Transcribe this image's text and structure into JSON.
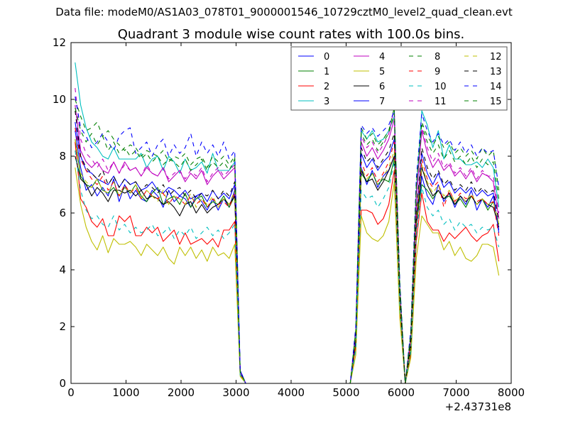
{
  "figure": {
    "suptitle": "Data file: modeM0/AS1A03_078T01_9000001546_10729cztM0_level2_quad_clean.evt"
  },
  "chart_data": {
    "type": "line",
    "title": "Quadrant 3 module wise count rates with 100.0s bins.",
    "xlabel": "",
    "ylabel": "",
    "x_offset_label": "+2.43731e8",
    "xlim": [
      0,
      8000
    ],
    "ylim": [
      0,
      12
    ],
    "xticks": [
      0,
      1000,
      2000,
      3000,
      4000,
      5000,
      6000,
      7000,
      8000
    ],
    "yticks": [
      0,
      2,
      4,
      6,
      8,
      10,
      12
    ],
    "grid": false,
    "legend_position": "top-right",
    "legend_columns": 4,
    "x": [
      75,
      175,
      275,
      375,
      475,
      575,
      675,
      775,
      875,
      975,
      1075,
      1175,
      1275,
      1375,
      1475,
      1575,
      1675,
      1775,
      1875,
      1975,
      2075,
      2175,
      2275,
      2375,
      2475,
      2575,
      2675,
      2775,
      2875,
      2975,
      3075,
      3175,
      5075,
      5175,
      5275,
      5375,
      5475,
      5575,
      5675,
      5775,
      5875,
      5975,
      6075,
      6175,
      6275,
      6375,
      6475,
      6575,
      6675,
      6775,
      6875,
      6975,
      7075,
      7175,
      7275,
      7375,
      7475,
      7575,
      7675,
      7775
    ],
    "series": [
      {
        "name": "0",
        "color": "#0000ff",
        "dash": "solid",
        "values": [
          8.9,
          7.6,
          6.8,
          7.0,
          6.6,
          6.9,
          6.6,
          7.2,
          6.4,
          7.0,
          6.5,
          6.8,
          6.5,
          6.4,
          6.8,
          6.6,
          6.2,
          6.8,
          6.4,
          6.6,
          6.5,
          6.2,
          6.6,
          6.4,
          6.1,
          6.5,
          6.1,
          6.5,
          6.2,
          6.8,
          0.45,
          0.0,
          0.0,
          1.5,
          7.6,
          7.0,
          7.5,
          6.9,
          7.3,
          7.5,
          8.0,
          3.0,
          0.0,
          1.3,
          5.5,
          7.3,
          6.6,
          6.3,
          7.0,
          6.4,
          6.7,
          6.2,
          6.6,
          6.3,
          6.8,
          6.1,
          6.5,
          6.2,
          6.6,
          5.4
        ]
      },
      {
        "name": "1",
        "color": "#008000",
        "dash": "solid",
        "values": [
          8.6,
          7.3,
          7.0,
          6.9,
          7.2,
          6.8,
          6.7,
          6.9,
          6.6,
          6.9,
          6.7,
          7.0,
          6.6,
          6.4,
          6.7,
          6.9,
          6.3,
          6.5,
          6.6,
          6.3,
          6.7,
          6.2,
          6.5,
          6.6,
          6.2,
          6.4,
          6.3,
          6.6,
          6.2,
          6.6,
          0.4,
          0.0,
          0.0,
          1.6,
          7.4,
          7.1,
          7.4,
          7.0,
          7.2,
          7.1,
          7.9,
          2.9,
          0.0,
          1.4,
          5.6,
          7.0,
          6.8,
          6.5,
          6.8,
          6.5,
          6.6,
          6.3,
          6.5,
          6.2,
          6.6,
          6.3,
          6.5,
          6.1,
          6.4,
          5.6
        ]
      },
      {
        "name": "2",
        "color": "#ff0000",
        "dash": "solid",
        "values": [
          8.5,
          6.5,
          6.2,
          5.7,
          5.5,
          5.8,
          5.2,
          5.2,
          5.9,
          5.7,
          5.9,
          5.2,
          5.2,
          5.5,
          5.3,
          5.5,
          5.0,
          5.2,
          5.4,
          4.9,
          5.3,
          4.9,
          5.0,
          5.1,
          4.9,
          5.1,
          4.8,
          5.4,
          5.4,
          5.7,
          0.3,
          0.0,
          0.0,
          1.3,
          6.1,
          6.1,
          6.0,
          5.6,
          5.8,
          6.3,
          7.5,
          2.6,
          0.0,
          1.0,
          5.0,
          6.7,
          5.7,
          5.4,
          5.4,
          5.0,
          5.3,
          5.1,
          5.3,
          5.5,
          5.2,
          5.0,
          5.2,
          5.3,
          5.6,
          4.3
        ]
      },
      {
        "name": "3",
        "color": "#00bfbf",
        "dash": "solid",
        "values": [
          11.3,
          9.8,
          9.0,
          8.5,
          8.3,
          8.0,
          7.9,
          8.3,
          7.9,
          7.9,
          7.9,
          7.9,
          8.1,
          7.6,
          7.9,
          8.0,
          7.5,
          8.0,
          7.8,
          7.4,
          7.9,
          7.5,
          7.6,
          7.8,
          7.4,
          8.1,
          7.5,
          7.5,
          7.5,
          7.8,
          0.45,
          0.0,
          0.0,
          1.8,
          8.9,
          8.6,
          8.9,
          8.5,
          8.6,
          8.9,
          9.4,
          3.4,
          0.0,
          1.7,
          6.8,
          9.6,
          9.1,
          8.3,
          8.9,
          7.9,
          8.4,
          7.9,
          7.9,
          7.7,
          7.7,
          7.8,
          7.6,
          7.9,
          7.6,
          6.2
        ]
      },
      {
        "name": "4",
        "color": "#bf00bf",
        "dash": "solid",
        "values": [
          9.8,
          8.2,
          7.8,
          7.6,
          7.8,
          7.5,
          7.4,
          7.8,
          7.4,
          7.8,
          7.5,
          7.6,
          7.3,
          7.6,
          7.4,
          7.3,
          7.6,
          7.1,
          7.3,
          7.5,
          7.1,
          7.4,
          7.2,
          7.5,
          7.0,
          7.3,
          7.5,
          7.2,
          7.4,
          7.6,
          0.4,
          0.0,
          0.0,
          1.7,
          8.5,
          8.0,
          8.3,
          7.9,
          8.2,
          8.6,
          9.3,
          3.2,
          0.0,
          1.6,
          6.5,
          8.9,
          8.1,
          7.6,
          7.9,
          7.5,
          7.7,
          7.3,
          7.5,
          7.2,
          7.5,
          7.1,
          7.4,
          7.3,
          7.1,
          5.8
        ]
      },
      {
        "name": "5",
        "color": "#bfbf00",
        "dash": "solid",
        "values": [
          7.6,
          6.3,
          5.5,
          5.0,
          4.7,
          5.2,
          4.6,
          5.1,
          4.9,
          4.9,
          5.0,
          4.8,
          4.5,
          4.9,
          4.7,
          4.5,
          4.8,
          4.4,
          4.2,
          4.8,
          4.5,
          4.8,
          4.4,
          4.7,
          4.3,
          4.8,
          4.5,
          4.6,
          4.4,
          4.9,
          0.25,
          0.0,
          0.0,
          1.0,
          5.9,
          5.3,
          5.1,
          5.0,
          5.2,
          5.7,
          7.1,
          2.3,
          0.0,
          0.9,
          4.4,
          5.9,
          5.6,
          5.3,
          5.3,
          4.7,
          5.0,
          4.5,
          4.8,
          4.4,
          4.3,
          4.5,
          4.9,
          4.9,
          4.8,
          3.8
        ]
      },
      {
        "name": "6",
        "color": "#000000",
        "dash": "solid",
        "values": [
          8.0,
          7.2,
          7.0,
          6.6,
          6.9,
          6.7,
          6.4,
          6.8,
          6.8,
          6.7,
          6.8,
          6.6,
          6.8,
          6.5,
          6.6,
          6.5,
          6.3,
          6.4,
          6.2,
          5.9,
          6.3,
          6.4,
          6.0,
          6.3,
          6.0,
          6.2,
          6.3,
          6.5,
          6.3,
          6.6,
          0.4,
          0.0,
          0.0,
          1.5,
          7.5,
          7.1,
          7.2,
          6.8,
          7.1,
          7.5,
          8.0,
          2.9,
          0.0,
          1.2,
          5.5,
          7.6,
          7.0,
          6.6,
          6.8,
          6.5,
          6.7,
          6.3,
          6.6,
          6.4,
          6.6,
          6.3,
          6.5,
          6.3,
          6.2,
          5.5
        ]
      },
      {
        "name": "7",
        "color": "#0000ff",
        "dash": "solid",
        "values": [
          9.2,
          8.0,
          7.5,
          7.4,
          7.2,
          7.1,
          7.0,
          7.3,
          6.9,
          7.2,
          7.0,
          7.1,
          6.8,
          6.9,
          7.1,
          6.8,
          6.7,
          6.9,
          6.8,
          6.6,
          6.8,
          6.5,
          6.6,
          6.7,
          6.4,
          6.8,
          6.5,
          6.7,
          6.5,
          7.0,
          0.45,
          0.0,
          0.0,
          1.7,
          8.1,
          7.6,
          7.9,
          7.5,
          7.8,
          8.0,
          8.6,
          3.1,
          0.0,
          1.5,
          5.9,
          8.1,
          7.4,
          7.0,
          7.4,
          6.9,
          7.1,
          6.7,
          6.9,
          6.7,
          6.9,
          6.6,
          6.8,
          6.6,
          6.7,
          5.3
        ]
      },
      {
        "name": "8",
        "color": "#008000",
        "dash": "dashed",
        "values": [
          10.0,
          9.4,
          8.9,
          9.0,
          9.2,
          8.7,
          8.9,
          8.6,
          8.4,
          8.2,
          8.4,
          8.3,
          8.0,
          8.2,
          8.1,
          8.0,
          8.2,
          7.8,
          8.0,
          7.9,
          8.1,
          7.7,
          7.9,
          8.0,
          7.6,
          8.0,
          7.8,
          8.0,
          7.7,
          8.0,
          0.4,
          0.0,
          0.0,
          1.9,
          9.0,
          8.6,
          8.8,
          8.4,
          8.6,
          8.9,
          9.7,
          3.5,
          0.0,
          1.8,
          7.0,
          9.2,
          8.7,
          8.4,
          8.7,
          8.3,
          8.5,
          8.1,
          8.3,
          8.0,
          8.2,
          7.9,
          8.3,
          8.0,
          8.2,
          6.8
        ]
      },
      {
        "name": "9",
        "color": "#ff0000",
        "dash": "dashed",
        "values": [
          9.0,
          7.9,
          7.5,
          7.2,
          7.0,
          7.3,
          6.8,
          7.1,
          6.6,
          7.0,
          6.7,
          6.9,
          6.5,
          6.8,
          6.6,
          6.5,
          6.7,
          6.3,
          6.6,
          6.5,
          6.3,
          6.6,
          6.3,
          6.5,
          6.2,
          6.5,
          6.3,
          6.4,
          6.2,
          6.7,
          0.35,
          0.0,
          0.0,
          1.6,
          7.8,
          7.3,
          7.6,
          7.1,
          7.4,
          7.8,
          8.5,
          3.0,
          0.0,
          1.4,
          5.7,
          7.9,
          7.2,
          6.9,
          7.1,
          6.2,
          6.8,
          6.4,
          6.7,
          6.5,
          6.6,
          6.4,
          6.5,
          6.3,
          6.4,
          5.2
        ]
      },
      {
        "name": "10",
        "color": "#00bfbf",
        "dash": "dashed",
        "values": [
          8.2,
          6.8,
          6.1,
          5.8,
          5.9,
          5.6,
          5.5,
          5.9,
          5.4,
          5.6,
          5.3,
          5.5,
          5.3,
          5.4,
          5.6,
          5.2,
          5.3,
          5.5,
          5.1,
          5.4,
          5.2,
          5.5,
          5.1,
          5.3,
          5.5,
          5.2,
          5.4,
          5.1,
          5.3,
          5.6,
          0.3,
          0.0,
          0.0,
          1.2,
          6.8,
          6.5,
          6.6,
          6.2,
          6.5,
          6.9,
          7.8,
          2.7,
          0.0,
          1.1,
          5.2,
          6.9,
          6.2,
          5.9,
          6.1,
          5.6,
          5.8,
          5.4,
          5.7,
          5.5,
          5.6,
          5.3,
          5.5,
          5.4,
          5.5,
          4.8
        ]
      },
      {
        "name": "11",
        "color": "#bf00bf",
        "dash": "dashed",
        "values": [
          10.4,
          8.6,
          8.1,
          7.9,
          7.6,
          7.9,
          7.5,
          7.8,
          7.4,
          7.7,
          7.5,
          7.6,
          7.3,
          7.7,
          7.4,
          7.3,
          7.6,
          7.2,
          7.4,
          7.5,
          7.2,
          7.5,
          7.3,
          7.6,
          7.1,
          7.4,
          7.6,
          7.3,
          7.5,
          7.7,
          0.4,
          0.0,
          0.0,
          1.8,
          8.7,
          8.3,
          8.5,
          8.1,
          8.4,
          8.8,
          9.7,
          3.3,
          0.0,
          1.6,
          6.6,
          9.0,
          8.3,
          7.8,
          8.1,
          7.6,
          7.8,
          7.4,
          7.6,
          7.3,
          7.6,
          7.2,
          7.5,
          7.3,
          7.3,
          6.0
        ]
      },
      {
        "name": "12",
        "color": "#bfbf00",
        "dash": "dashed",
        "values": [
          8.6,
          7.4,
          7.1,
          6.9,
          7.2,
          6.8,
          6.7,
          7.1,
          6.6,
          6.9,
          6.7,
          7.0,
          6.5,
          6.8,
          6.6,
          6.4,
          6.8,
          6.3,
          6.6,
          6.5,
          6.3,
          6.7,
          6.2,
          6.5,
          6.3,
          6.6,
          6.2,
          6.5,
          6.3,
          6.8,
          0.35,
          0.0,
          0.0,
          1.6,
          7.6,
          7.2,
          7.4,
          7.0,
          7.3,
          7.6,
          8.2,
          2.9,
          0.0,
          1.3,
          5.7,
          7.7,
          7.1,
          6.7,
          7.0,
          6.6,
          6.8,
          6.4,
          6.6,
          6.4,
          6.7,
          6.3,
          6.5,
          6.3,
          6.4,
          5.6
        ]
      },
      {
        "name": "13",
        "color": "#000000",
        "dash": "dashed",
        "values": [
          9.6,
          8.0,
          7.6,
          7.4,
          7.2,
          7.5,
          7.0,
          7.3,
          6.9,
          7.2,
          7.0,
          7.1,
          6.8,
          7.0,
          6.9,
          6.7,
          7.0,
          6.6,
          6.8,
          6.9,
          6.6,
          6.8,
          6.5,
          6.7,
          6.6,
          6.8,
          6.5,
          6.8,
          6.6,
          7.1,
          0.4,
          0.0,
          0.0,
          1.7,
          8.3,
          7.8,
          8.0,
          7.6,
          7.9,
          8.2,
          8.8,
          3.1,
          0.0,
          1.5,
          6.0,
          8.3,
          7.6,
          7.2,
          7.5,
          7.0,
          7.2,
          6.8,
          7.0,
          6.8,
          7.1,
          6.7,
          6.9,
          6.7,
          6.8,
          5.7
        ]
      },
      {
        "name": "14",
        "color": "#0000ff",
        "dash": "dashed",
        "values": [
          10.1,
          9.0,
          8.7,
          8.3,
          8.5,
          8.8,
          8.5,
          8.2,
          8.7,
          8.9,
          9.0,
          8.1,
          8.3,
          8.5,
          8.0,
          8.4,
          8.6,
          8.0,
          8.4,
          8.1,
          8.3,
          8.8,
          8.0,
          8.5,
          8.1,
          8.4,
          8.0,
          8.5,
          7.9,
          8.2,
          0.45,
          0.0,
          0.0,
          2.0,
          9.1,
          8.8,
          9.0,
          8.7,
          8.9,
          9.1,
          9.6,
          3.6,
          0.0,
          1.9,
          7.2,
          9.5,
          8.9,
          8.5,
          8.8,
          8.4,
          8.6,
          8.2,
          8.5,
          8.1,
          8.4,
          8.0,
          8.3,
          8.1,
          8.2,
          6.9
        ]
      },
      {
        "name": "15",
        "color": "#008000",
        "dash": "dashed",
        "values": [
          9.7,
          8.9,
          8.5,
          8.8,
          8.4,
          8.7,
          8.2,
          8.5,
          8.1,
          8.3,
          8.0,
          8.2,
          7.9,
          8.1,
          7.8,
          8.0,
          7.7,
          7.9,
          7.8,
          7.6,
          7.9,
          7.5,
          7.7,
          7.9,
          7.5,
          7.8,
          7.6,
          7.8,
          7.5,
          7.9,
          0.4,
          0.0,
          0.0,
          1.8,
          8.8,
          8.4,
          8.6,
          8.2,
          8.5,
          8.8,
          9.5,
          3.4,
          0.0,
          1.7,
          6.9,
          9.1,
          8.5,
          8.1,
          8.4,
          7.9,
          8.2,
          7.8,
          8.0,
          7.7,
          8.0,
          7.6,
          7.9,
          7.7,
          7.8,
          6.5
        ]
      }
    ]
  }
}
